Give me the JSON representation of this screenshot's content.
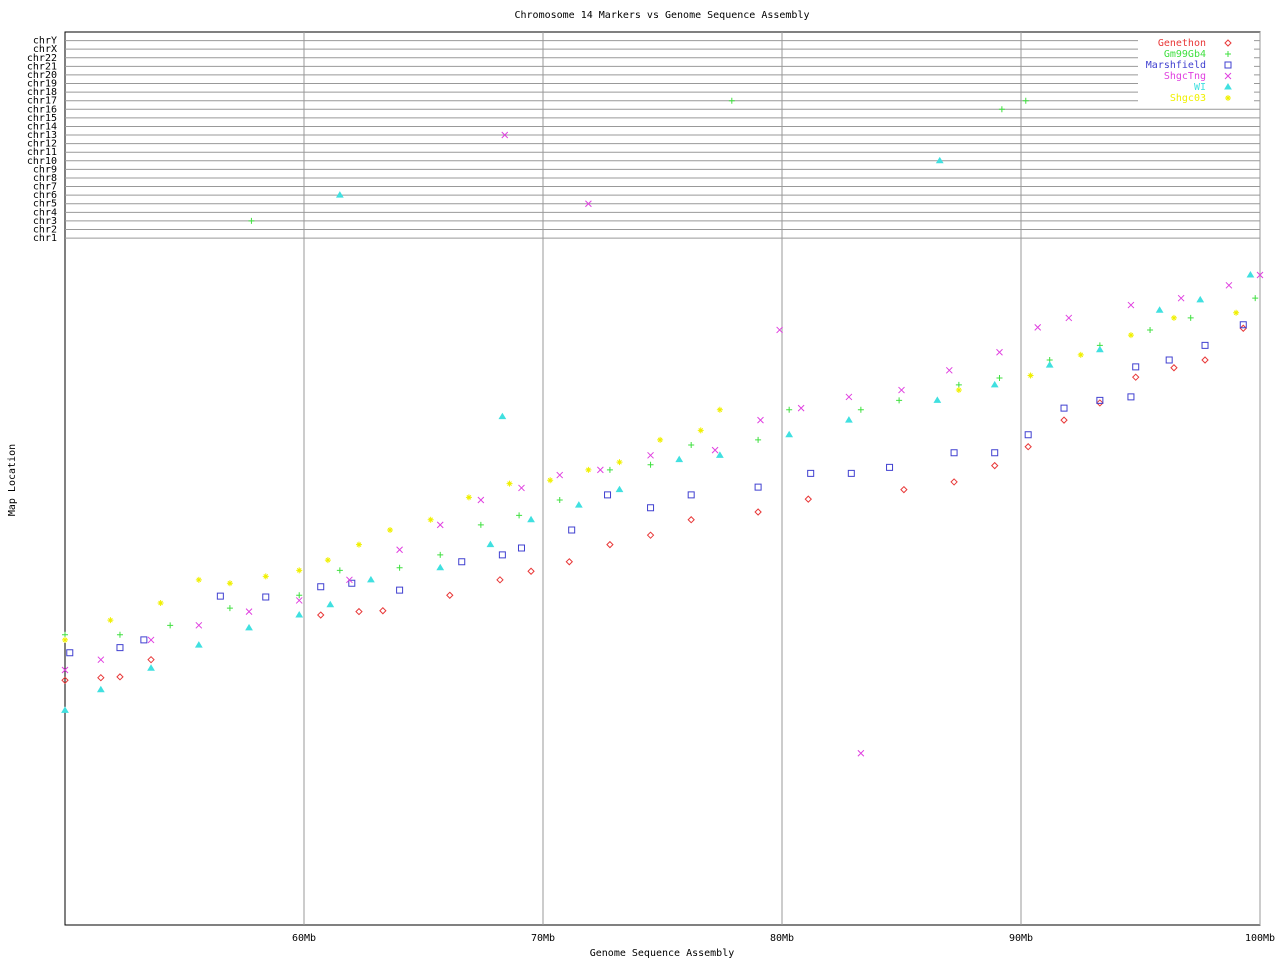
{
  "chart_data": {
    "type": "scatter",
    "title": "Chromosome 14 Markers vs Genome Sequence Assembly",
    "x_label": "Genome Sequence Assembly",
    "y_label": "Map Location",
    "xlim": [
      50,
      100
    ],
    "xticks": [
      {
        "value": 60,
        "label": "60Mb"
      },
      {
        "value": 70,
        "label": "70Mb"
      },
      {
        "value": 80,
        "label": "80Mb"
      },
      {
        "value": 90,
        "label": "90Mb"
      },
      {
        "value": 100,
        "label": "100Mb"
      }
    ],
    "ylim": [
      0,
      104
    ],
    "yticks": [
      {
        "value": 80,
        "label": "chr1"
      },
      {
        "value": 81,
        "label": "chr2"
      },
      {
        "value": 82,
        "label": "chr3"
      },
      {
        "value": 83,
        "label": "chr4"
      },
      {
        "value": 84,
        "label": "chr5"
      },
      {
        "value": 85,
        "label": "chr6"
      },
      {
        "value": 86,
        "label": "chr7"
      },
      {
        "value": 87,
        "label": "chr8"
      },
      {
        "value": 88,
        "label": "chr9"
      },
      {
        "value": 89,
        "label": "chr10"
      },
      {
        "value": 90,
        "label": "chr11"
      },
      {
        "value": 91,
        "label": "chr12"
      },
      {
        "value": 92,
        "label": "chr13"
      },
      {
        "value": 93,
        "label": "chr14"
      },
      {
        "value": 94,
        "label": "chr15"
      },
      {
        "value": 95,
        "label": "chr16"
      },
      {
        "value": 96,
        "label": "chr17"
      },
      {
        "value": 97,
        "label": "chr18"
      },
      {
        "value": 98,
        "label": "chr19"
      },
      {
        "value": 99,
        "label": "chr20"
      },
      {
        "value": 100,
        "label": "chr21"
      },
      {
        "value": 101,
        "label": "chr22"
      },
      {
        "value": 102,
        "label": "chrX"
      },
      {
        "value": 103,
        "label": "chrY"
      }
    ],
    "grid": true,
    "legend": "top-right",
    "series": [
      {
        "name": "Genethon",
        "color": "#e83838",
        "marker": "diamond",
        "x": [
          50,
          51.5,
          52.3,
          53.6,
          60.7,
          62.3,
          63.3,
          66.1,
          68.2,
          69.5,
          71.1,
          72.8,
          74.5,
          76.2,
          79,
          81.1,
          85.1,
          87.2,
          88.9,
          90.3,
          91.8,
          93.3,
          94.8,
          96.4,
          97.7,
          99.3
        ],
        "values": [
          28.5,
          28.8,
          28.9,
          30.9,
          36.1,
          36.5,
          36.6,
          38.4,
          40.2,
          41.2,
          42.3,
          44.3,
          45.4,
          47.2,
          48.1,
          49.6,
          50.7,
          51.6,
          53.5,
          55.7,
          58.8,
          60.8,
          63.8,
          64.9,
          65.8,
          69.5
        ]
      },
      {
        "name": "Gm99Gb4",
        "color": "#40e040",
        "marker": "plus",
        "x": [
          50,
          52.3,
          54.4,
          56.9,
          59.8,
          61.5,
          64,
          65.7,
          67.4,
          69,
          70.7,
          72.8,
          74.5,
          76.2,
          79,
          80.3,
          83.3,
          84.9,
          87.4,
          89.1,
          91.2,
          93.3,
          95.4,
          97.1,
          99.8,
          57.8,
          77.9,
          89.2,
          90.2
        ],
        "values": [
          33.8,
          33.8,
          34.9,
          36.9,
          38.4,
          41.3,
          41.6,
          43.1,
          46.6,
          47.7,
          49.5,
          53,
          53.6,
          55.9,
          56.5,
          60,
          60,
          61.1,
          62.9,
          63.7,
          65.8,
          67.5,
          69.3,
          70.7,
          73,
          82,
          96,
          95,
          96
        ]
      },
      {
        "name": "Marshfield",
        "color": "#4040d0",
        "marker": "square",
        "x": [
          50.2,
          52.3,
          53.3,
          56.5,
          58.4,
          60.7,
          62,
          64,
          66.6,
          68.3,
          69.1,
          71.2,
          72.7,
          74.5,
          76.2,
          79,
          81.2,
          82.9,
          84.5,
          87.2,
          88.9,
          90.3,
          91.8,
          93.3,
          94.6,
          94.8,
          96.2,
          97.7,
          99.3
        ],
        "values": [
          31.7,
          32.3,
          33.2,
          38.3,
          38.2,
          39.4,
          39.8,
          39,
          42.3,
          43.1,
          43.9,
          46,
          50.1,
          48.6,
          50.1,
          51,
          52.6,
          52.6,
          53.3,
          55,
          55,
          57.1,
          60.2,
          61.1,
          61.5,
          65,
          65.8,
          67.5,
          69.9
        ]
      },
      {
        "name": "ShgcTng",
        "color": "#e040e0",
        "marker": "x",
        "x": [
          50,
          51.5,
          53.6,
          55.6,
          57.7,
          59.8,
          61.9,
          64,
          65.7,
          67.4,
          69.1,
          70.7,
          72.4,
          74.5,
          77.2,
          79.1,
          80.8,
          82.8,
          85,
          87,
          89.1,
          90.7,
          92,
          94.6,
          96.7,
          98.7,
          100,
          79.9,
          83.3,
          68.4,
          71.9
        ],
        "values": [
          29.7,
          30.9,
          33.2,
          34.9,
          36.5,
          37.8,
          40.2,
          43.7,
          46.6,
          49.5,
          50.9,
          52.4,
          53,
          54.7,
          55.3,
          58.8,
          60.2,
          61.5,
          62.3,
          64.6,
          66.7,
          69.6,
          70.7,
          72.2,
          73,
          74.5,
          75.7,
          69.3,
          20,
          92,
          84
        ]
      },
      {
        "name": "WI",
        "color": "#40e0e0",
        "marker": "triangle",
        "x": [
          50,
          51.5,
          53.6,
          55.6,
          57.7,
          59.8,
          61.1,
          62.8,
          65.7,
          67.8,
          69.5,
          71.5,
          73.2,
          75.7,
          77.4,
          80.3,
          82.8,
          86.5,
          88.9,
          91.2,
          93.3,
          95.8,
          97.5,
          99.6,
          68.3,
          61.5,
          86.6
        ],
        "values": [
          25,
          27.4,
          29.9,
          32.6,
          34.6,
          36.1,
          37.3,
          40.2,
          41.6,
          44.3,
          47.2,
          48.9,
          50.7,
          54.2,
          54.7,
          57.1,
          58.8,
          61.1,
          62.9,
          65.2,
          67,
          71.6,
          72.8,
          75.7,
          59.2,
          85,
          89
        ]
      },
      {
        "name": "Shgc03",
        "color": "#f0f000",
        "marker": "star",
        "x": [
          50,
          51.9,
          54,
          55.6,
          56.9,
          58.4,
          59.8,
          61,
          62.3,
          63.6,
          65.3,
          66.9,
          68.6,
          70.3,
          71.9,
          73.2,
          74.9,
          76.6,
          77.4,
          87.4,
          90.4,
          92.5,
          94.6,
          96.4,
          99
        ],
        "values": [
          33.2,
          35.5,
          37.5,
          40.2,
          39.8,
          40.6,
          41.3,
          42.5,
          44.3,
          46,
          47.2,
          49.8,
          51.4,
          51.8,
          53,
          53.9,
          56.5,
          57.6,
          60,
          62.3,
          64,
          66.4,
          68.7,
          70.7,
          71.3
        ]
      }
    ]
  }
}
